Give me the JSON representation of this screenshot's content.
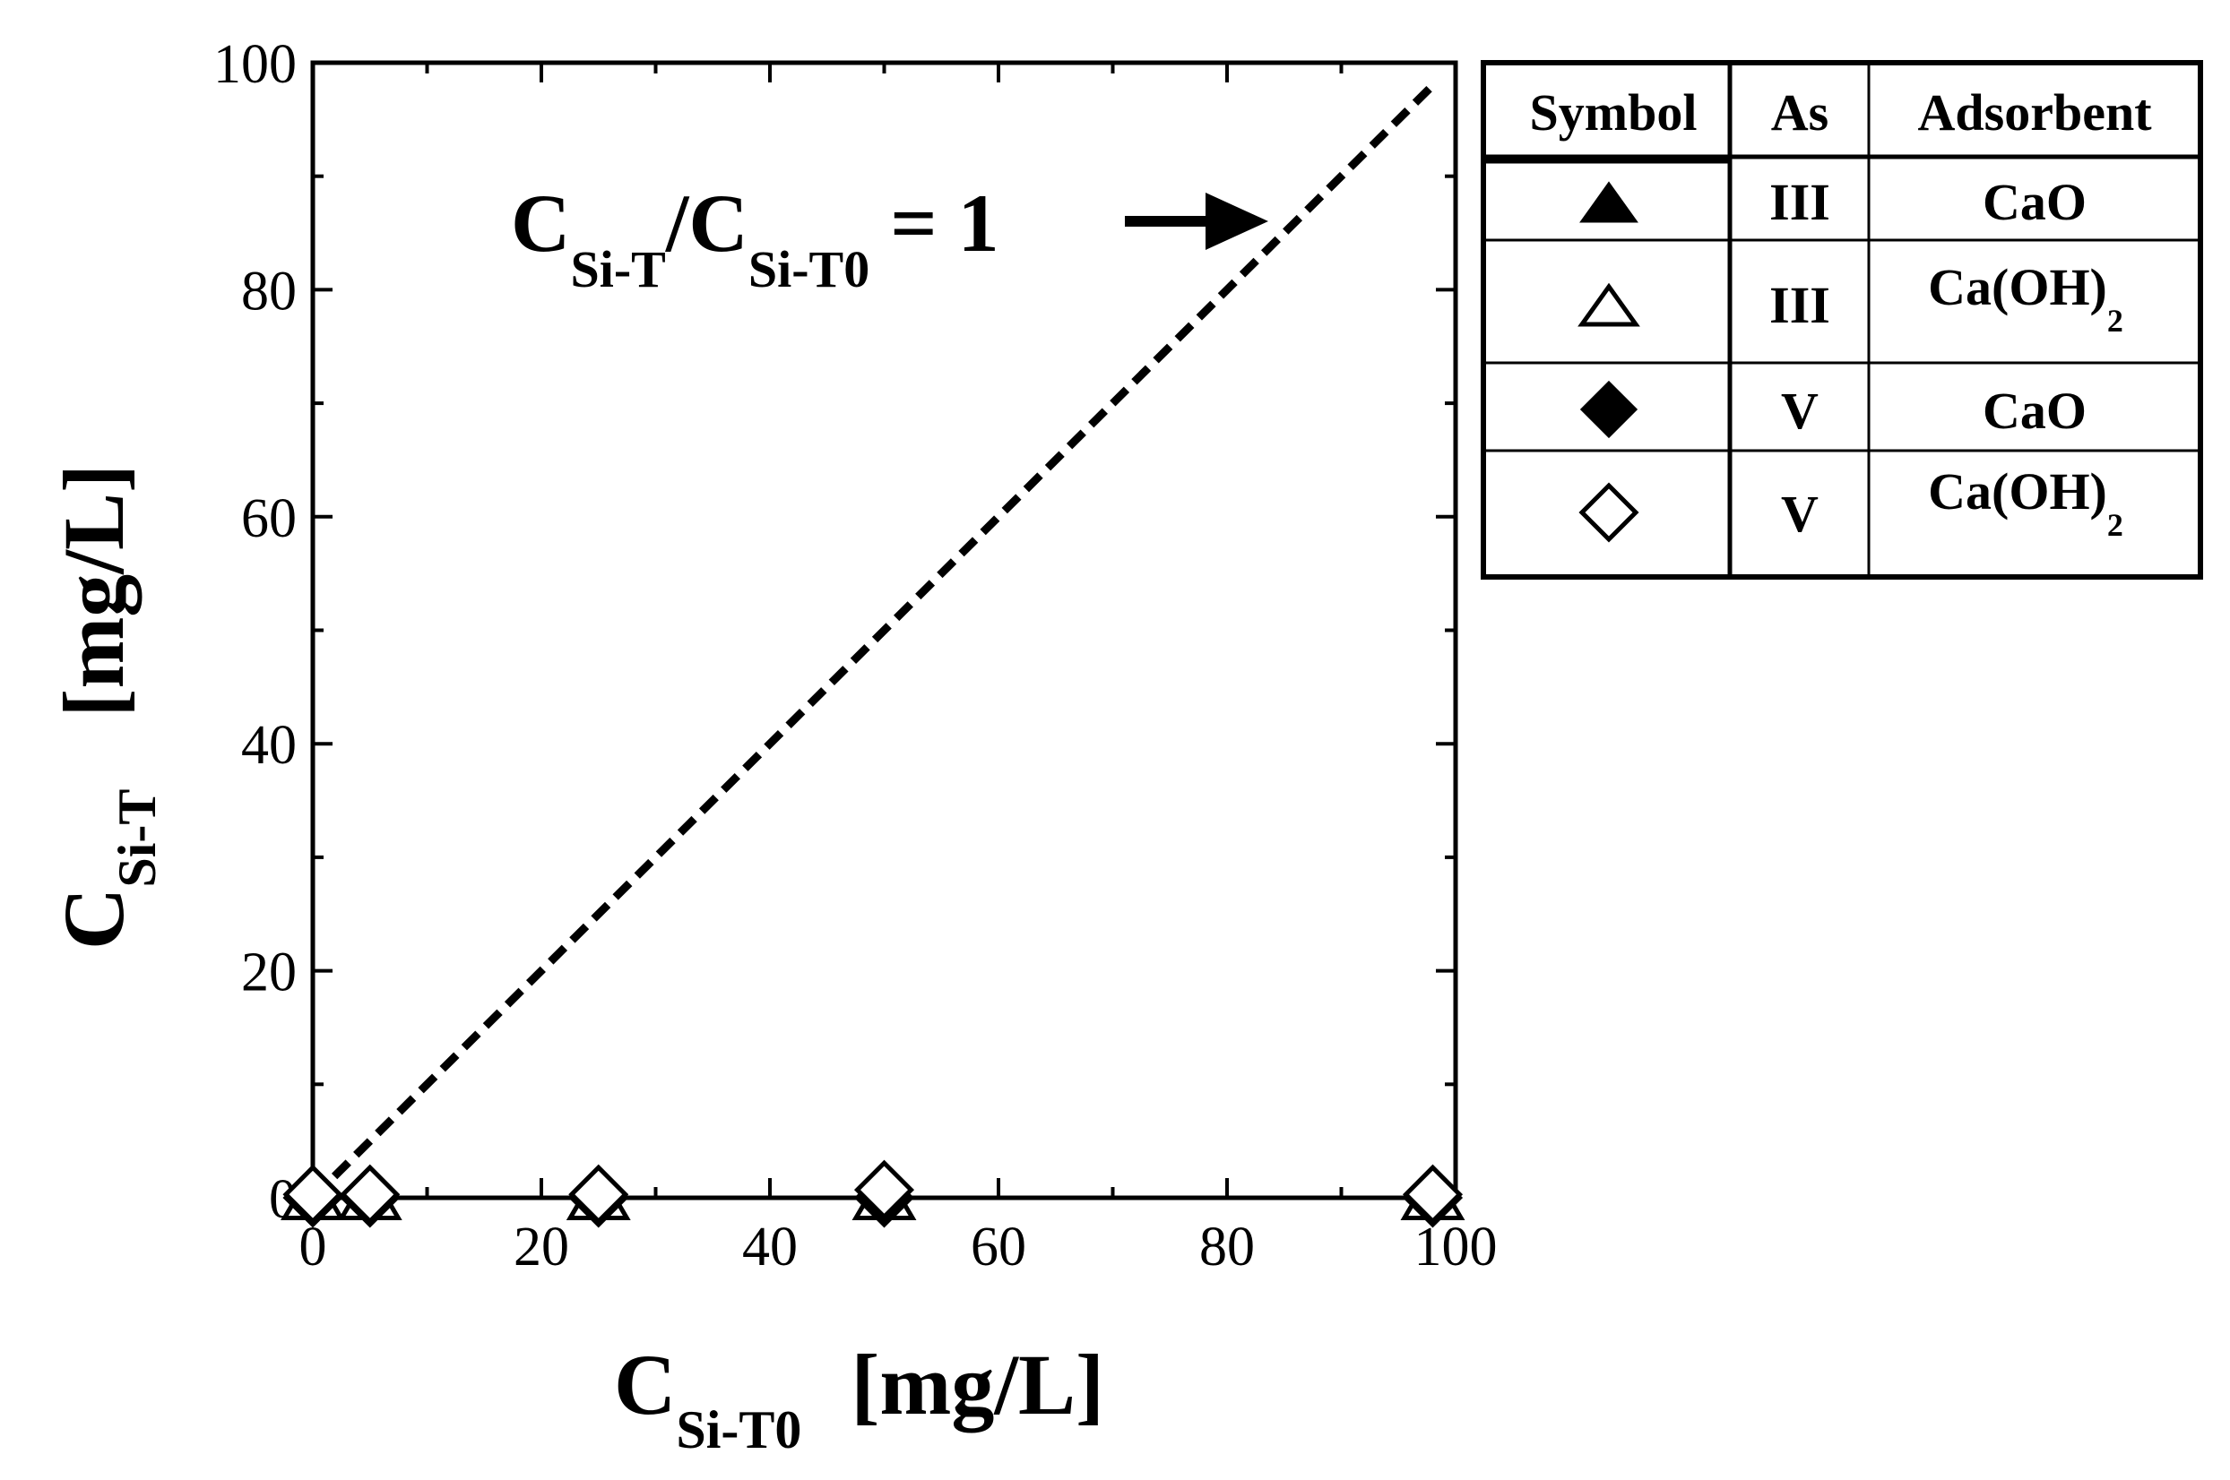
{
  "chart_data": {
    "type": "scatter",
    "x_axis": {
      "label": "C",
      "label_subscript": "Si-T0",
      "unit": "[mg/L]",
      "range": [
        0,
        100
      ],
      "ticks": [
        0,
        20,
        40,
        60,
        80,
        100
      ]
    },
    "y_axis": {
      "label": "C",
      "label_subscript": "Si-T",
      "unit": "[mg/L]",
      "range": [
        0,
        100
      ],
      "ticks": [
        0,
        20,
        40,
        60,
        80,
        100
      ]
    },
    "reference_line": {
      "style": "dashed",
      "x": [
        0,
        98
      ],
      "y": [
        0,
        98
      ]
    },
    "annotation": {
      "part1": "C",
      "sub1": "Si-T",
      "part2": "/C",
      "sub2": "Si-T0",
      "part3": " = 1",
      "arrow": "arrow pointing right to the dashed line"
    },
    "series": [
      {
        "marker": "filled-triangle",
        "as": "III",
        "adsorbent": "CaO",
        "adsorbent_sub": "",
        "x": [
          0,
          5,
          25,
          50,
          98
        ],
        "y": [
          0,
          0,
          0,
          0,
          0
        ]
      },
      {
        "marker": "open-triangle",
        "as": "III",
        "adsorbent": "Ca(OH)",
        "adsorbent_sub": "2",
        "x": [
          0,
          5,
          25,
          50,
          98
        ],
        "y": [
          0,
          0,
          0,
          0,
          0
        ]
      },
      {
        "marker": "filled-diamond",
        "as": "V",
        "adsorbent": "CaO",
        "adsorbent_sub": "",
        "x": [
          0,
          5,
          25,
          50,
          98
        ],
        "y": [
          0,
          0,
          0,
          0,
          0
        ]
      },
      {
        "marker": "open-diamond",
        "as": "V",
        "adsorbent": "Ca(OH)",
        "adsorbent_sub": "2",
        "x": [
          0,
          5,
          25,
          50,
          98
        ],
        "y": [
          0.3,
          0.3,
          0.3,
          0.7,
          0.3
        ]
      }
    ],
    "legend": {
      "placement": "right",
      "headers": [
        "Symbol",
        "As",
        "Adsorbent"
      ]
    },
    "grid": false
  }
}
